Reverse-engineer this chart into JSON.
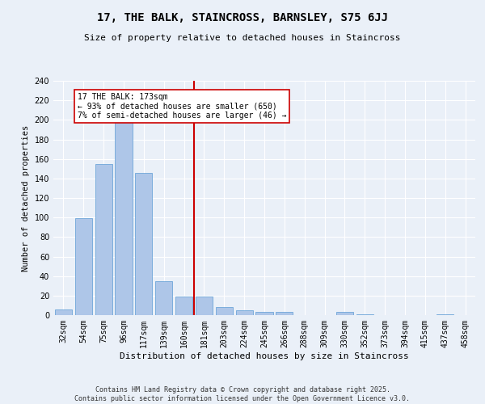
{
  "title": "17, THE BALK, STAINCROSS, BARNSLEY, S75 6JJ",
  "subtitle": "Size of property relative to detached houses in Staincross",
  "xlabel": "Distribution of detached houses by size in Staincross",
  "ylabel": "Number of detached properties",
  "bar_color": "#aec6e8",
  "bar_edge_color": "#5b9bd5",
  "background_color": "#eaf0f8",
  "grid_color": "#ffffff",
  "categories": [
    "32sqm",
    "54sqm",
    "75sqm",
    "96sqm",
    "117sqm",
    "139sqm",
    "160sqm",
    "181sqm",
    "203sqm",
    "224sqm",
    "245sqm",
    "266sqm",
    "288sqm",
    "309sqm",
    "330sqm",
    "352sqm",
    "373sqm",
    "394sqm",
    "415sqm",
    "437sqm",
    "458sqm"
  ],
  "values": [
    6,
    99,
    155,
    201,
    146,
    35,
    19,
    19,
    8,
    5,
    3,
    3,
    0,
    0,
    3,
    1,
    0,
    0,
    0,
    1,
    0
  ],
  "vline_index": 7,
  "vline_color": "#cc0000",
  "annotation_title": "17 THE BALK: 173sqm",
  "annotation_line1": "← 93% of detached houses are smaller (650)",
  "annotation_line2": "7% of semi-detached houses are larger (46) →",
  "annotation_box_color": "#ffffff",
  "annotation_box_edge": "#cc0000",
  "footer_line1": "Contains HM Land Registry data © Crown copyright and database right 2025.",
  "footer_line2": "Contains public sector information licensed under the Open Government Licence v3.0.",
  "ylim": [
    0,
    240
  ],
  "yticks": [
    0,
    20,
    40,
    60,
    80,
    100,
    120,
    140,
    160,
    180,
    200,
    220,
    240
  ],
  "title_fontsize": 10,
  "subtitle_fontsize": 8,
  "ylabel_fontsize": 7.5,
  "xlabel_fontsize": 8,
  "tick_fontsize": 7,
  "annotation_fontsize": 7,
  "footer_fontsize": 6
}
